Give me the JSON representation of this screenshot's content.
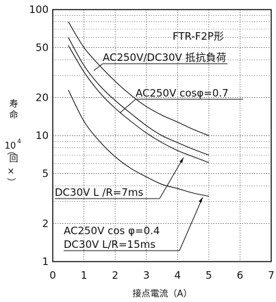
{
  "chart_data": {
    "type": "line",
    "title": "",
    "model_label": "FTR-F2P形",
    "xlabel": "接点電流（A）",
    "ylabel_lines": [
      "寿",
      "命",
      "10",
      "4",
      "（",
      "回",
      "×",
      "）"
    ],
    "xlim": [
      0,
      7
    ],
    "ylim": [
      1,
      100
    ],
    "y_scale": "log",
    "x_ticks": [
      "0",
      "1",
      "2",
      "3",
      "4",
      "5",
      "6",
      "7"
    ],
    "y_ticks": [
      {
        "value": 1,
        "label": "1"
      },
      {
        "value": 2,
        "label": "2"
      },
      {
        "value": 5,
        "label": "5"
      },
      {
        "value": 10,
        "label": "10"
      },
      {
        "value": 20,
        "label": "20"
      },
      {
        "value": 50,
        "label": "50"
      },
      {
        "value": 100,
        "label": "100"
      }
    ],
    "grid": true,
    "series": [
      {
        "x": [
          0.5,
          1,
          1.5,
          2,
          2.5,
          3,
          3.5,
          4,
          4.5,
          5
        ],
        "y": [
          80,
          50,
          36,
          27,
          21,
          17,
          14.5,
          12.8,
          11.2,
          10
        ]
      },
      {
        "x": [
          0.5,
          1,
          1.5,
          2,
          2.5,
          3,
          3.5,
          4,
          4.5,
          5
        ],
        "y": [
          60,
          36,
          25,
          19,
          15,
          12,
          10,
          8.8,
          7.8,
          7
        ]
      },
      {
        "x": [
          0.5,
          1,
          1.5,
          2,
          2.5,
          3,
          3.5,
          4,
          4.5,
          5
        ],
        "y": [
          52,
          32,
          22,
          16.5,
          13,
          10.5,
          8.8,
          7.6,
          6.8,
          6.1
        ]
      },
      {
        "x": [
          0.5,
          1,
          1.5,
          2,
          2.5,
          3,
          3.5,
          4,
          4.5,
          5
        ],
        "y": [
          23,
          13,
          9,
          6.8,
          5.5,
          4.7,
          4.1,
          3.8,
          3.5,
          3.3
        ]
      }
    ],
    "annotations": [
      {
        "id": "ann1",
        "text": "AC250V/DC30V 抵抗負荷"
      },
      {
        "id": "ann2",
        "text": "AC250V cosφ=0.7"
      },
      {
        "id": "ann3",
        "text": "DC30V L /R=7ms"
      },
      {
        "id": "ann4a",
        "text": "AC250V cos φ=0.4"
      },
      {
        "id": "ann4b",
        "text": "DC30V L/R=15ms"
      }
    ]
  }
}
